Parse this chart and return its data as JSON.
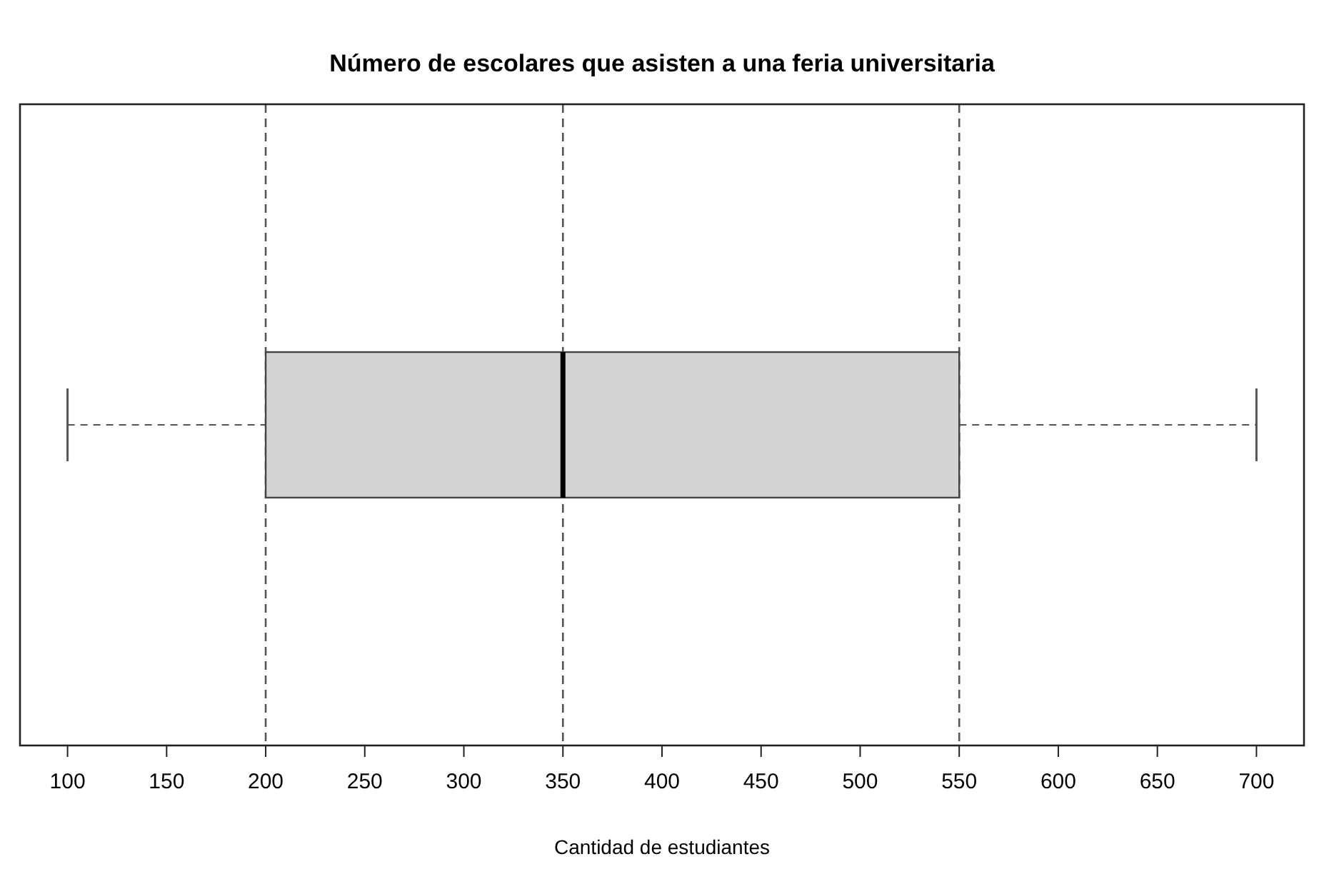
{
  "chart_data": {
    "type": "box",
    "title": "Número de escolares que asisten a una feria universitaria",
    "xlabel": "Cantidad de estudiantes",
    "orientation": "horizontal",
    "categories": [
      null
    ],
    "color": "#d3d3d3",
    "boxes": [
      {
        "low": 100,
        "q1": 200,
        "median": 350,
        "q3": 550,
        "high": 700
      }
    ],
    "xlim": [
      76,
      724
    ],
    "xticks": [
      100,
      150,
      200,
      250,
      300,
      350,
      400,
      450,
      500,
      550,
      600,
      650,
      700
    ],
    "ref_lines": [
      {
        "axis": "x",
        "value": 200,
        "line_style": "dashed",
        "color": "#555555"
      },
      {
        "axis": "x",
        "value": 350,
        "line_style": "dashed",
        "color": "#555555"
      },
      {
        "axis": "x",
        "value": 550,
        "line_style": "dashed",
        "color": "#555555"
      }
    ]
  }
}
